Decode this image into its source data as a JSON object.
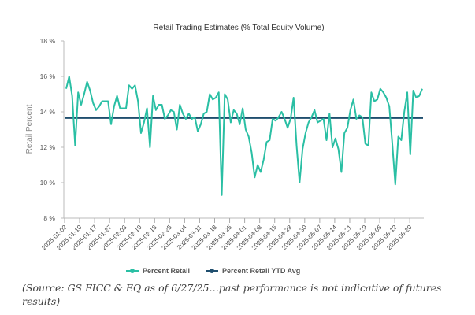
{
  "chart_data": {
    "type": "line",
    "title": "Retail Trading Estimates (% Total Equity Volume)",
    "xlabel": "",
    "ylabel": "Retail Percent",
    "ylim": [
      8,
      18
    ],
    "yticks": [
      "8 %",
      "10 %",
      "12 %",
      "14 %",
      "16 %",
      "18 %"
    ],
    "ytick_values": [
      8,
      10,
      12,
      14,
      16,
      18
    ],
    "xticks": [
      "2025-01-02",
      "2025-01-10",
      "2025-01-17",
      "2025-01-27",
      "2025-02-03",
      "2025-02-10",
      "2025-02-18",
      "2025-02-25",
      "2025-03-04",
      "2025-03-11",
      "2025-03-18",
      "2025-03-25",
      "2025-04-01",
      "2025-04-08",
      "2025-04-15",
      "2025-04-23",
      "2025-04-30",
      "2025-05-07",
      "2025-05-14",
      "2025-05-21",
      "2025-05-29",
      "2025-06-05",
      "2025-06-12",
      "2025-06-20"
    ],
    "grid": false,
    "legend_position": "bottom",
    "series": [
      {
        "name": "Percent Retail",
        "color": "#2ABFA4",
        "values": [
          15.3,
          16.0,
          14.9,
          12.1,
          15.1,
          14.4,
          15.0,
          15.7,
          15.2,
          14.5,
          14.1,
          14.3,
          14.6,
          14.6,
          14.6,
          13.3,
          14.3,
          14.9,
          14.2,
          14.2,
          14.2,
          15.5,
          15.3,
          15.5,
          14.6,
          12.8,
          13.4,
          14.2,
          12.0,
          14.9,
          14.1,
          14.4,
          14.4,
          13.6,
          13.8,
          14.1,
          14.0,
          13.0,
          14.4,
          13.9,
          13.6,
          13.9,
          13.6,
          13.7,
          12.9,
          13.3,
          13.9,
          14.0,
          15.0,
          14.7,
          14.8,
          15.1,
          9.3,
          15.0,
          14.7,
          13.4,
          14.1,
          13.9,
          13.3,
          14.2,
          13.0,
          12.6,
          11.7,
          10.3,
          11.0,
          10.6,
          11.3,
          12.3,
          12.4,
          13.6,
          13.5,
          13.7,
          14.0,
          13.6,
          13.1,
          13.6,
          14.8,
          12.1,
          10.0,
          11.9,
          12.8,
          13.4,
          13.7,
          14.1,
          13.4,
          13.5,
          13.6,
          12.4,
          13.9,
          12.0,
          12.5,
          11.9,
          10.6,
          12.8,
          13.1,
          14.1,
          14.7,
          13.6,
          13.8,
          13.7,
          12.2,
          12.1,
          15.1,
          14.6,
          14.7,
          15.3,
          15.1,
          14.8,
          14.3,
          12.2,
          9.9,
          12.6,
          12.4,
          14.0,
          15.1,
          11.6,
          15.2,
          14.8,
          14.9,
          15.3
        ]
      },
      {
        "name": "Percent Retail YTD Avg",
        "color": "#1F4E6E",
        "values": [
          13.65
        ]
      }
    ]
  },
  "legend": {
    "items": [
      "Percent Retail",
      "Percent Retail YTD Avg"
    ]
  },
  "source_note": "(Source: GS FICC & EQ as of 6/27/25…past performance is not indicative of futures results)"
}
